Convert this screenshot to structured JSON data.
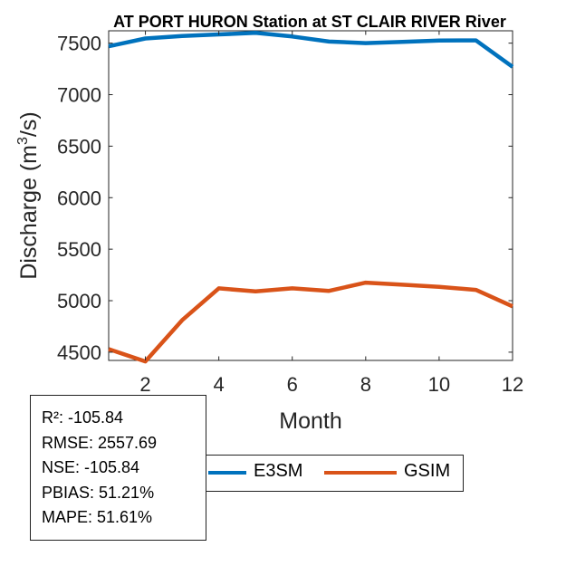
{
  "chart_data": {
    "type": "line",
    "title": "AT PORT HURON  Station at  ST CLAIR RIVER  River",
    "xlabel": "Month",
    "ylabel_main": "Discharge (m",
    "ylabel_sup": "3",
    "ylabel_tail": "/s)",
    "xlim": [
      1,
      12
    ],
    "ylim": [
      4420,
      7620
    ],
    "xticks": [
      2,
      4,
      6,
      8,
      10,
      12
    ],
    "yticks": [
      4500,
      5000,
      5500,
      6000,
      6500,
      7000,
      7500
    ],
    "grid": false,
    "legend_position": "bottom",
    "x": [
      1,
      2,
      3,
      4,
      5,
      6,
      7,
      8,
      9,
      10,
      11,
      12
    ],
    "series": [
      {
        "name": "E3SM",
        "color": "#0072BD",
        "values": [
          7470,
          7545,
          7570,
          7585,
          7600,
          7565,
          7515,
          7500,
          7512,
          7525,
          7527,
          7270
        ]
      },
      {
        "name": "GSIM",
        "color": "#D95319",
        "values": [
          4530,
          4410,
          4810,
          5120,
          5090,
          5120,
          5095,
          5175,
          5155,
          5135,
          5105,
          4945
        ]
      }
    ]
  },
  "stats": [
    "R²: -105.84",
    "RMSE: 2557.69",
    "NSE: -105.84",
    "PBIAS: 51.21%",
    "MAPE: 51.61%"
  ]
}
